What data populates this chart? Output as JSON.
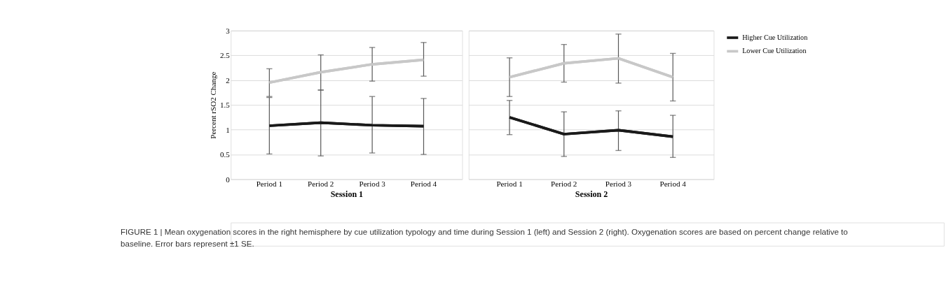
{
  "chart_data": [
    {
      "type": "line",
      "xlabel": "Session 1",
      "ylabel": "Percent rSO2 Change",
      "categories": [
        "Period 1",
        "Period 2",
        "Period 3",
        "Period 4"
      ],
      "ylim": [
        0,
        3
      ],
      "yticks": [
        0,
        0.5,
        1,
        1.5,
        2,
        2.5,
        3
      ],
      "grid": "y",
      "marker": "none",
      "line_style": "solid",
      "series": [
        {
          "color": "#1a1a1a",
          "values": [
            1.08,
            1.14,
            1.09,
            1.07
          ],
          "errors": [
            [
              0.51,
              1.65
            ],
            [
              0.47,
              1.8
            ],
            [
              0.53,
              1.67
            ],
            [
              0.5,
              1.63
            ]
          ]
        },
        {
          "color": "#c8c8c8",
          "values": [
            1.95,
            2.16,
            2.32,
            2.41
          ],
          "errors": [
            [
              1.67,
              2.23
            ],
            [
              1.8,
              2.51
            ],
            [
              1.98,
              2.66
            ],
            [
              2.08,
              2.76
            ]
          ]
        }
      ]
    },
    {
      "type": "line",
      "xlabel": "Session 2",
      "categories": [
        "Period 1",
        "Period 2",
        "Period 3",
        "Period 4"
      ],
      "ylim": [
        0,
        3
      ],
      "yticks": [
        0,
        0.5,
        1,
        1.5,
        2,
        2.5,
        3
      ],
      "grid": "y",
      "tick_labels": "x",
      "legend": "right",
      "marker": "none",
      "line_style": "solid",
      "series": [
        {
          "name": "Higher Cue Utilization",
          "color": "#1a1a1a",
          "values": [
            1.25,
            0.91,
            0.99,
            0.86
          ],
          "errors": [
            [
              0.9,
              1.59
            ],
            [
              0.46,
              1.36
            ],
            [
              0.58,
              1.38
            ],
            [
              0.44,
              1.29
            ]
          ]
        },
        {
          "name": "Lower Cue Utilization",
          "color": "#c8c8c8",
          "values": [
            2.06,
            2.34,
            2.44,
            2.06
          ],
          "errors": [
            [
              1.67,
              2.45
            ],
            [
              1.96,
              2.72
            ],
            [
              1.94,
              2.93
            ],
            [
              1.58,
              2.54
            ]
          ]
        }
      ],
      "annotations": [
        "FIGURE 1 | Mean oxygenation scores in the right hemisphere by cue utilization typology and time during Session 1 (left) and Session 2 (right). Oxygenation scores are based on percent change relative to baseline. Error bars represent ±1 SE."
      ]
    }
  ]
}
